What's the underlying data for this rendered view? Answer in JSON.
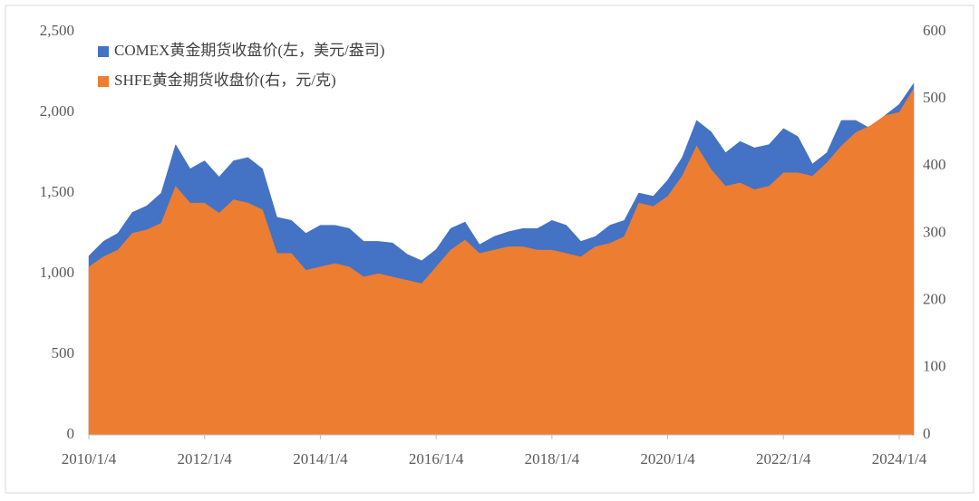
{
  "chart_data": {
    "type": "area",
    "categories": [
      "2010/1/4",
      null,
      null,
      null,
      null,
      null,
      null,
      null,
      "2012/1/4",
      null,
      null,
      null,
      null,
      null,
      null,
      null,
      "2014/1/4",
      null,
      null,
      null,
      null,
      null,
      null,
      null,
      "2016/1/4",
      null,
      null,
      null,
      null,
      null,
      null,
      null,
      "2018/1/4",
      null,
      null,
      null,
      null,
      null,
      null,
      null,
      "2020/1/4",
      null,
      null,
      null,
      null,
      null,
      null,
      null,
      "2022/1/4",
      null,
      null,
      null,
      null,
      null,
      null,
      null,
      "2024/1/4",
      null
    ],
    "series": [
      {
        "name": "COMEX黄金期货收盘价(左，美元/盎司)",
        "color": "#4472c4",
        "axis": "y",
        "values": [
          1110,
          1200,
          1250,
          1380,
          1420,
          1500,
          1800,
          1650,
          1700,
          1600,
          1700,
          1720,
          1650,
          1350,
          1330,
          1250,
          1300,
          1300,
          1280,
          1200,
          1200,
          1190,
          1120,
          1080,
          1150,
          1280,
          1320,
          1180,
          1230,
          1260,
          1280,
          1280,
          1330,
          1300,
          1200,
          1230,
          1300,
          1330,
          1500,
          1480,
          1580,
          1720,
          1950,
          1880,
          1750,
          1820,
          1780,
          1800,
          1900,
          1850,
          1680,
          1750,
          1950,
          1950,
          1900,
          1980,
          2050,
          2180
        ]
      },
      {
        "name": "SHFE黄金期货收盘价(右，元/克)",
        "color": "#ed7d31",
        "axis": "y2",
        "values": [
          250,
          265,
          275,
          300,
          305,
          315,
          370,
          345,
          345,
          330,
          350,
          345,
          335,
          270,
          270,
          245,
          250,
          255,
          250,
          235,
          240,
          235,
          230,
          225,
          250,
          275,
          290,
          270,
          275,
          280,
          280,
          275,
          275,
          270,
          265,
          280,
          285,
          295,
          345,
          340,
          355,
          385,
          430,
          395,
          370,
          375,
          365,
          370,
          390,
          390,
          385,
          405,
          430,
          450,
          460,
          475,
          480,
          515
        ]
      }
    ],
    "ylim": [
      0,
      2500
    ],
    "yticks": [
      0,
      500,
      {
        "value": 1000,
        "label": "1,000"
      },
      {
        "value": 1500,
        "label": "1,500"
      },
      {
        "value": 2000,
        "label": "2,000"
      },
      {
        "value": 2500,
        "label": "2,500"
      }
    ],
    "y2lim": [
      0,
      600
    ],
    "y2ticks": [
      0,
      100,
      200,
      300,
      400,
      500,
      600
    ],
    "grid": false
  }
}
